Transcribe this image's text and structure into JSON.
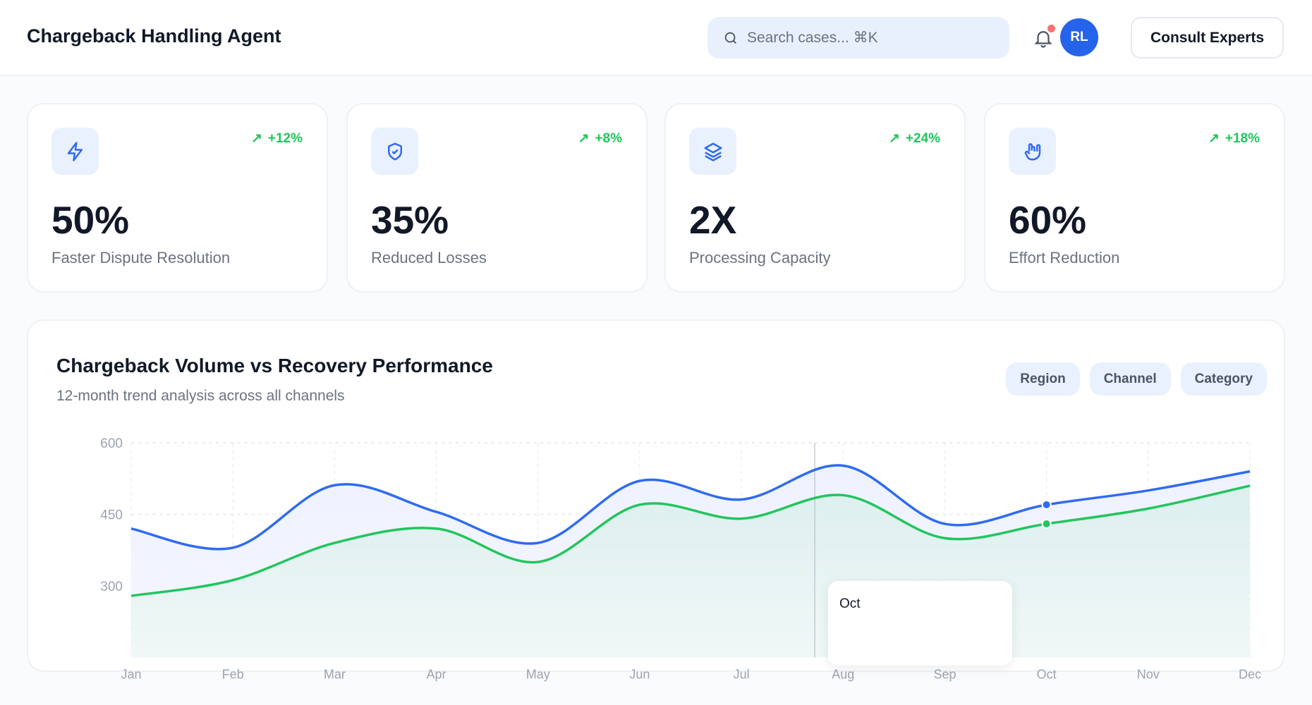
{
  "header": {
    "title": "Chargeback Handling Agent",
    "search_placeholder": "Search cases... ⌘K",
    "avatar_initials": "RL",
    "consult_label": "Consult Experts",
    "notification_dot_color": "#f87171"
  },
  "metrics": [
    {
      "icon": "zap-icon",
      "trend": "+12%",
      "value": "50%",
      "label": "Faster Dispute Resolution"
    },
    {
      "icon": "shield-check-icon",
      "trend": "+8%",
      "value": "35%",
      "label": "Reduced Losses"
    },
    {
      "icon": "layers-icon",
      "trend": "+24%",
      "value": "2X",
      "label": "Processing Capacity"
    },
    {
      "icon": "hand-metal-icon",
      "trend": "+18%",
      "value": "60%",
      "label": "Effort Reduction"
    }
  ],
  "chart": {
    "title": "Chargeback Volume vs Recovery Performance",
    "subtitle": "12-month trend analysis across all channels",
    "filters": [
      "Region",
      "Channel",
      "Category"
    ],
    "tooltip_label": "Oct"
  },
  "chart_data": {
    "type": "area",
    "categories": [
      "Jan",
      "Feb",
      "Mar",
      "Apr",
      "May",
      "Jun",
      "Jul",
      "Aug",
      "Sep",
      "Oct",
      "Nov",
      "Dec"
    ],
    "series": [
      {
        "color": "#2f6bf0",
        "values": [
          420,
          380,
          511,
          455,
          390,
          520,
          481,
          552,
          430,
          470,
          500,
          540
        ]
      },
      {
        "color": "#22c55e",
        "values": [
          279,
          312,
          390,
          420,
          350,
          470,
          441,
          490,
          400,
          430,
          462,
          510
        ]
      }
    ],
    "yticks": [
      300,
      450,
      600
    ],
    "ylim": [
      150,
      600
    ],
    "grid": true,
    "highlight_index": 9
  }
}
